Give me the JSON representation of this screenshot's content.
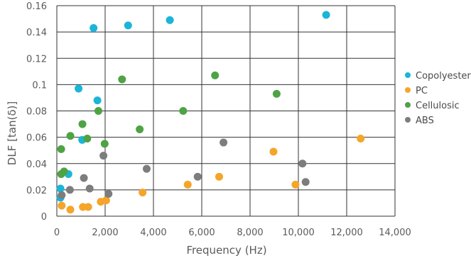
{
  "chart_data": {
    "type": "scatter",
    "title": "",
    "xlabel": "Frequency (Hz)",
    "ylabel": "DLF [tan(δ)]",
    "xlim": [
      0,
      14000
    ],
    "ylim": [
      0,
      0.16
    ],
    "x_ticks": [
      0,
      2000,
      4000,
      6000,
      8000,
      10000,
      12000,
      14000
    ],
    "x_tick_labels": [
      "0",
      "2,000",
      "4,000",
      "6,000",
      "8,000",
      "10,000",
      "12,000",
      "14,000"
    ],
    "y_ticks": [
      0,
      0.02,
      0.04,
      0.06,
      0.08,
      0.1,
      0.12,
      0.14,
      0.16
    ],
    "y_tick_labels": [
      "0",
      "0.02",
      "0.04",
      "0.06",
      "0.08",
      "0.1",
      "0.12",
      "0.14",
      "0.16"
    ],
    "grid": true,
    "legend_position": "right",
    "series": [
      {
        "name": "Copolyester",
        "color": "#1bb5d8",
        "points": [
          [
            150,
            0.014
          ],
          [
            150,
            0.021
          ],
          [
            480,
            0.032
          ],
          [
            900,
            0.097
          ],
          [
            1050,
            0.058
          ],
          [
            1680,
            0.088
          ],
          [
            1520,
            0.143
          ],
          [
            2950,
            0.145
          ],
          [
            4680,
            0.149
          ],
          [
            11150,
            0.153
          ]
        ]
      },
      {
        "name": "PC",
        "color": "#f4a52a",
        "points": [
          [
            200,
            0.008
          ],
          [
            560,
            0.005
          ],
          [
            1080,
            0.007
          ],
          [
            1300,
            0.007
          ],
          [
            1820,
            0.011
          ],
          [
            2040,
            0.012
          ],
          [
            3550,
            0.018
          ],
          [
            5420,
            0.024
          ],
          [
            6720,
            0.03
          ],
          [
            8970,
            0.049
          ],
          [
            9880,
            0.024
          ],
          [
            12580,
            0.059
          ]
        ]
      },
      {
        "name": "Cellulosic",
        "color": "#4ea343",
        "points": [
          [
            180,
            0.051
          ],
          [
            180,
            0.032
          ],
          [
            300,
            0.034
          ],
          [
            560,
            0.061
          ],
          [
            1060,
            0.07
          ],
          [
            1260,
            0.059
          ],
          [
            1720,
            0.08
          ],
          [
            1980,
            0.055
          ],
          [
            2700,
            0.104
          ],
          [
            3430,
            0.066
          ],
          [
            5230,
            0.08
          ],
          [
            6550,
            0.107
          ],
          [
            9100,
            0.093
          ]
        ]
      },
      {
        "name": "ABS",
        "color": "#7d7d7d",
        "points": [
          [
            200,
            0.016
          ],
          [
            540,
            0.02
          ],
          [
            1120,
            0.029
          ],
          [
            1360,
            0.021
          ],
          [
            1930,
            0.046
          ],
          [
            2140,
            0.017
          ],
          [
            3720,
            0.036
          ],
          [
            5830,
            0.03
          ],
          [
            6900,
            0.056
          ],
          [
            10170,
            0.04
          ],
          [
            10300,
            0.026
          ]
        ]
      }
    ]
  }
}
